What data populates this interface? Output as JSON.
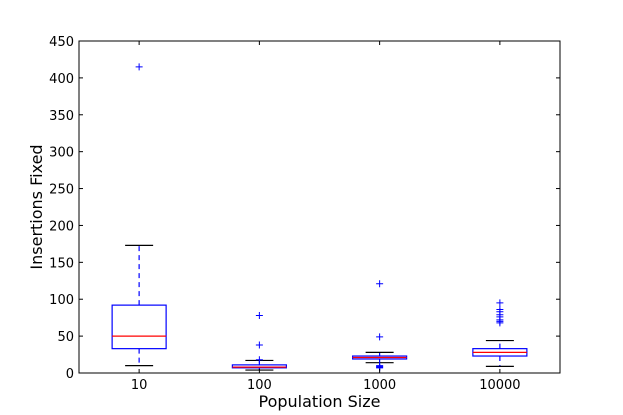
{
  "chart_data": {
    "type": "box",
    "xlabel": "Population Size",
    "ylabel": "Insertions Fixed",
    "ylim": [
      0,
      450
    ],
    "yticks": [
      0,
      50,
      100,
      150,
      200,
      250,
      300,
      350,
      400,
      450
    ],
    "grid": false,
    "colors": {
      "box": "#0000ff",
      "median": "#ff0000",
      "whisker": "#0000ff",
      "cap": "#000000",
      "flier": "#0000ff"
    },
    "categories": [
      "10",
      "100",
      "1000",
      "10000"
    ],
    "boxes": [
      {
        "label": "10",
        "whisker_low": 10,
        "q1": 33,
        "median": 50,
        "q3": 92,
        "whisker_high": 173,
        "fliers": [
          415
        ]
      },
      {
        "label": "100",
        "whisker_low": 4,
        "q1": 7,
        "median": 8,
        "q3": 11,
        "whisker_high": 17,
        "fliers": [
          78,
          38,
          18
        ]
      },
      {
        "label": "1000",
        "whisker_low": 14,
        "q1": 19,
        "median": 21,
        "q3": 23,
        "whisker_high": 28,
        "fliers": [
          121,
          49,
          10,
          9,
          8,
          7
        ]
      },
      {
        "label": "10000",
        "whisker_low": 9,
        "q1": 23,
        "median": 28,
        "q3": 33,
        "whisker_high": 44,
        "fliers": [
          95,
          86,
          83,
          79,
          76,
          72,
          70,
          68
        ]
      }
    ]
  }
}
